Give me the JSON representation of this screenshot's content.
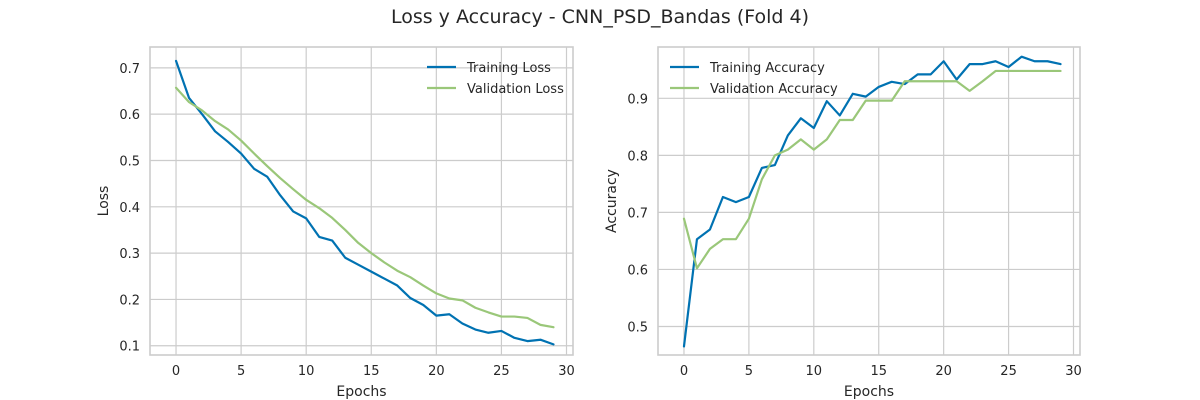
{
  "figure": {
    "title": "Loss y Accuracy - CNN_PSD_Bandas (Fold 4)"
  },
  "colors": {
    "training": "#0072b2",
    "validation": "#9ac779"
  },
  "chart_data": [
    {
      "type": "line",
      "xlabel": "Epochs",
      "ylabel": "Loss",
      "xlim": [
        -2,
        30.5
      ],
      "ylim": [
        0.08,
        0.745
      ],
      "xticks": [
        0,
        5,
        10,
        15,
        20,
        25,
        30
      ],
      "yticks": [
        0.1,
        0.2,
        0.3,
        0.4,
        0.5,
        0.6,
        0.7
      ],
      "ytick_labels": [
        "0.1",
        "0.2",
        "0.3",
        "0.4",
        "0.5",
        "0.6",
        "0.7"
      ],
      "grid": true,
      "legend_position": "upper right",
      "x": [
        0,
        1,
        2,
        3,
        4,
        5,
        6,
        7,
        8,
        9,
        10,
        11,
        12,
        13,
        14,
        15,
        16,
        17,
        18,
        19,
        20,
        21,
        22,
        23,
        24,
        25,
        26,
        27,
        28,
        29
      ],
      "series": [
        {
          "name": "Training Loss",
          "color_key": "training",
          "values": [
            0.715,
            0.635,
            0.6,
            0.563,
            0.54,
            0.515,
            0.482,
            0.465,
            0.425,
            0.39,
            0.375,
            0.335,
            0.327,
            0.29,
            0.275,
            0.26,
            0.245,
            0.23,
            0.203,
            0.188,
            0.165,
            0.168,
            0.148,
            0.135,
            0.128,
            0.132,
            0.117,
            0.11,
            0.113,
            0.103
          ]
        },
        {
          "name": "Validation Loss",
          "color_key": "validation",
          "values": [
            0.657,
            0.626,
            0.608,
            0.585,
            0.567,
            0.543,
            0.515,
            0.488,
            0.462,
            0.438,
            0.415,
            0.397,
            0.376,
            0.35,
            0.322,
            0.3,
            0.28,
            0.262,
            0.248,
            0.23,
            0.213,
            0.202,
            0.198,
            0.182,
            0.172,
            0.163,
            0.163,
            0.16,
            0.145,
            0.14
          ]
        }
      ]
    },
    {
      "type": "line",
      "xlabel": "Epochs",
      "ylabel": "Accuracy",
      "xlim": [
        -2,
        30.5
      ],
      "ylim": [
        0.45,
        0.99
      ],
      "xticks": [
        0,
        5,
        10,
        15,
        20,
        25,
        30
      ],
      "yticks": [
        0.5,
        0.6,
        0.7,
        0.8,
        0.9
      ],
      "ytick_labels": [
        "0.5",
        "0.6",
        "0.7",
        "0.8",
        "0.9"
      ],
      "grid": true,
      "legend_position": "upper left",
      "x": [
        0,
        1,
        2,
        3,
        4,
        5,
        6,
        7,
        8,
        9,
        10,
        11,
        12,
        13,
        14,
        15,
        16,
        17,
        18,
        19,
        20,
        21,
        22,
        23,
        24,
        25,
        26,
        27,
        28,
        29
      ],
      "series": [
        {
          "name": "Training Accuracy",
          "color_key": "training",
          "values": [
            0.465,
            0.653,
            0.67,
            0.727,
            0.718,
            0.727,
            0.778,
            0.783,
            0.835,
            0.865,
            0.848,
            0.895,
            0.87,
            0.908,
            0.903,
            0.92,
            0.929,
            0.925,
            0.942,
            0.942,
            0.965,
            0.933,
            0.96,
            0.96,
            0.965,
            0.955,
            0.973,
            0.965,
            0.965,
            0.96
          ]
        },
        {
          "name": "Validation Accuracy",
          "color_key": "validation",
          "values": [
            0.689,
            0.602,
            0.636,
            0.653,
            0.653,
            0.689,
            0.758,
            0.8,
            0.81,
            0.828,
            0.81,
            0.828,
            0.862,
            0.862,
            0.896,
            0.896,
            0.896,
            0.93,
            0.93,
            0.93,
            0.93,
            0.93,
            0.913,
            0.93,
            0.948,
            0.948,
            0.948,
            0.948,
            0.948,
            0.948
          ]
        }
      ]
    }
  ]
}
